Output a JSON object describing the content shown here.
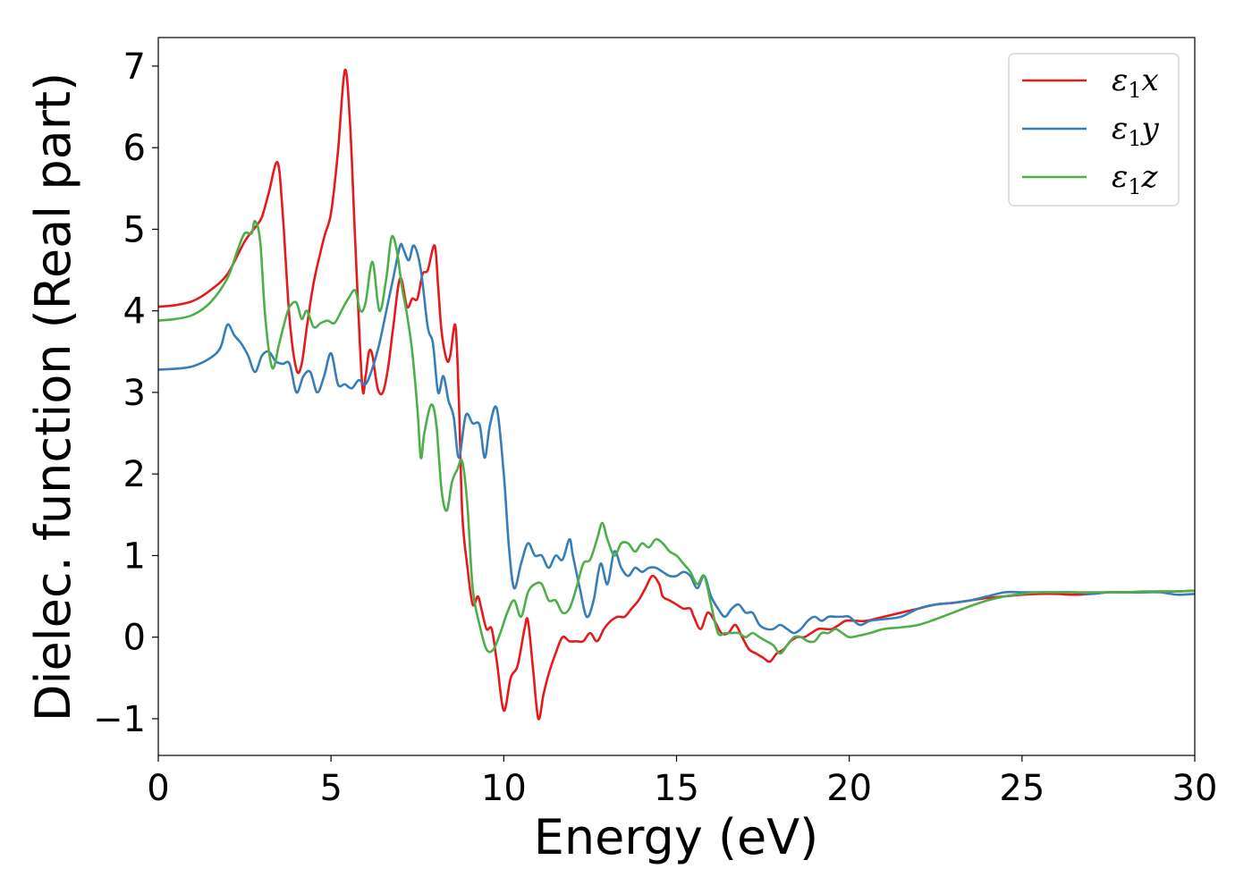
{
  "chart_data": {
    "type": "line",
    "title": "",
    "xlabel": "Energy (eV)",
    "ylabel": "Dielec. function (Real part)",
    "xlim": [
      0,
      30
    ],
    "ylim": [
      -1.45,
      7.35
    ],
    "xticks": [
      0,
      5,
      10,
      15,
      20,
      25,
      30
    ],
    "xtick_labels": [
      "0",
      "5",
      "10",
      "15",
      "20",
      "25",
      "30"
    ],
    "yticks": [
      -1,
      0,
      1,
      2,
      3,
      4,
      5,
      6,
      7
    ],
    "ytick_labels": [
      "−1",
      "0",
      "1",
      "2",
      "3",
      "4",
      "5",
      "6",
      "7"
    ],
    "grid": false,
    "legend_position": "top-right",
    "series": [
      {
        "name": "ε₁x",
        "legend_symbol": "ε",
        "legend_subscript": "1",
        "legend_suffix": "x",
        "color": "#e41a1c",
        "x": [
          0,
          0.5,
          1,
          1.5,
          2,
          2.5,
          2.8,
          3.0,
          3.2,
          3.45,
          3.6,
          3.8,
          4.0,
          4.15,
          4.3,
          4.5,
          4.8,
          5.0,
          5.2,
          5.4,
          5.55,
          5.7,
          5.9,
          6.0,
          6.1,
          6.2,
          6.35,
          6.5,
          6.65,
          6.8,
          7.0,
          7.2,
          7.35,
          7.5,
          7.65,
          7.8,
          8.0,
          8.1,
          8.2,
          8.35,
          8.45,
          8.6,
          8.7,
          8.8,
          8.95,
          9.1,
          9.25,
          9.35,
          9.5,
          9.65,
          9.8,
          10.0,
          10.2,
          10.4,
          10.6,
          10.7,
          10.85,
          11.0,
          11.15,
          11.3,
          11.5,
          11.7,
          11.9,
          12.1,
          12.3,
          12.5,
          12.7,
          12.9,
          13.1,
          13.3,
          13.5,
          13.7,
          13.9,
          14.1,
          14.3,
          14.5,
          14.6,
          14.8,
          15.0,
          15.2,
          15.4,
          15.5,
          15.7,
          15.9,
          16.1,
          16.3,
          16.5,
          16.7,
          16.9,
          17.1,
          17.3,
          17.5,
          17.7,
          17.9,
          18.1,
          18.3,
          18.5,
          18.7,
          18.9,
          19.1,
          19.3,
          19.5,
          19.7,
          19.9,
          20.2,
          20.5,
          21,
          21.5,
          22,
          22.5,
          23,
          23.5,
          24,
          24.5,
          25,
          25.5,
          26,
          26.5,
          27,
          27.5,
          28,
          28.5,
          29,
          29.5,
          30
        ],
        "y": [
          4.05,
          4.07,
          4.12,
          4.25,
          4.45,
          4.85,
          5.02,
          5.15,
          5.45,
          5.82,
          5.2,
          3.9,
          3.28,
          3.35,
          3.8,
          4.35,
          4.9,
          5.2,
          5.95,
          6.95,
          6.3,
          4.85,
          3.1,
          3.2,
          3.5,
          3.45,
          3.05,
          3.0,
          3.3,
          3.8,
          4.4,
          4.05,
          4.15,
          4.15,
          4.45,
          4.5,
          4.8,
          4.3,
          3.75,
          3.4,
          3.45,
          3.82,
          2.9,
          1.5,
          0.85,
          0.4,
          0.5,
          0.35,
          0.1,
          0.1,
          -0.3,
          -0.9,
          -0.5,
          -0.35,
          0.1,
          0.2,
          -0.4,
          -1.0,
          -0.7,
          -0.45,
          -0.2,
          0.0,
          -0.05,
          -0.05,
          -0.05,
          0.05,
          -0.05,
          0.1,
          0.2,
          0.25,
          0.25,
          0.35,
          0.45,
          0.6,
          0.75,
          0.65,
          0.5,
          0.45,
          0.4,
          0.35,
          0.35,
          0.25,
          0.1,
          0.3,
          0.2,
          0.05,
          0.05,
          0.15,
          0.0,
          -0.15,
          -0.2,
          -0.25,
          -0.3,
          -0.2,
          -0.15,
          -0.05,
          0.0,
          0.0,
          0.05,
          0.1,
          0.1,
          0.1,
          0.15,
          0.2,
          0.2,
          0.2,
          0.25,
          0.3,
          0.35,
          0.4,
          0.42,
          0.45,
          0.48,
          0.5,
          0.52,
          0.53,
          0.53,
          0.52,
          0.53,
          0.55,
          0.55,
          0.55,
          0.56,
          0.56,
          0.57
        ]
      },
      {
        "name": "ε₁y",
        "legend_symbol": "ε",
        "legend_subscript": "1",
        "legend_suffix": "y",
        "color": "#377eb8",
        "x": [
          0,
          0.5,
          1,
          1.5,
          1.8,
          2.0,
          2.2,
          2.4,
          2.6,
          2.8,
          3.0,
          3.2,
          3.4,
          3.6,
          3.8,
          4.0,
          4.2,
          4.4,
          4.6,
          4.8,
          5.0,
          5.2,
          5.4,
          5.6,
          5.8,
          6.0,
          6.2,
          6.4,
          6.6,
          6.8,
          7.0,
          7.1,
          7.25,
          7.4,
          7.6,
          7.8,
          7.95,
          8.1,
          8.25,
          8.4,
          8.55,
          8.7,
          8.9,
          9.1,
          9.3,
          9.45,
          9.6,
          9.8,
          10.0,
          10.15,
          10.3,
          10.5,
          10.7,
          10.9,
          11.1,
          11.3,
          11.5,
          11.7,
          11.9,
          12.0,
          12.2,
          12.4,
          12.6,
          12.8,
          13.0,
          13.2,
          13.4,
          13.6,
          13.8,
          14.0,
          14.2,
          14.4,
          14.6,
          14.8,
          15.0,
          15.2,
          15.4,
          15.6,
          15.8,
          16.0,
          16.2,
          16.4,
          16.6,
          16.8,
          17.0,
          17.2,
          17.4,
          17.6,
          17.8,
          18.0,
          18.2,
          18.4,
          18.6,
          18.8,
          19.0,
          19.2,
          19.4,
          19.6,
          19.8,
          20.0,
          20.3,
          20.6,
          21,
          21.5,
          22,
          22.5,
          23,
          23.5,
          24,
          24.5,
          25,
          25.5,
          26,
          26.5,
          27,
          27.5,
          28,
          28.5,
          29,
          29.5,
          30
        ],
        "y": [
          3.28,
          3.29,
          3.32,
          3.42,
          3.55,
          3.83,
          3.7,
          3.6,
          3.45,
          3.25,
          3.45,
          3.5,
          3.38,
          3.35,
          3.35,
          3.0,
          3.2,
          3.25,
          3.0,
          3.2,
          3.48,
          3.1,
          3.1,
          3.05,
          3.15,
          3.1,
          3.3,
          3.6,
          4.0,
          4.4,
          4.8,
          4.75,
          4.62,
          4.8,
          4.5,
          3.8,
          3.6,
          3.0,
          3.2,
          2.9,
          2.7,
          2.2,
          2.72,
          2.62,
          2.6,
          2.2,
          2.6,
          2.8,
          2.0,
          1.1,
          0.6,
          0.9,
          1.15,
          1.0,
          1.0,
          0.85,
          1.0,
          0.95,
          1.2,
          1.0,
          0.6,
          0.25,
          0.45,
          0.9,
          0.65,
          1.05,
          0.85,
          0.75,
          0.85,
          0.8,
          0.85,
          0.85,
          0.8,
          0.75,
          0.75,
          0.8,
          0.75,
          0.6,
          0.75,
          0.5,
          0.35,
          0.25,
          0.35,
          0.4,
          0.3,
          0.3,
          0.15,
          0.1,
          0.1,
          0.15,
          0.1,
          0.05,
          0.1,
          0.2,
          0.25,
          0.2,
          0.25,
          0.25,
          0.25,
          0.25,
          0.15,
          0.2,
          0.22,
          0.25,
          0.35,
          0.4,
          0.42,
          0.45,
          0.5,
          0.55,
          0.55,
          0.55,
          0.55,
          0.55,
          0.53,
          0.55,
          0.55,
          0.55,
          0.55,
          0.52,
          0.53
        ]
      },
      {
        "name": "ε₁z",
        "legend_symbol": "ε",
        "legend_subscript": "1",
        "legend_suffix": "z",
        "color": "#4daf4a",
        "x": [
          0,
          0.5,
          1,
          1.5,
          2.0,
          2.3,
          2.5,
          2.7,
          2.8,
          2.95,
          3.1,
          3.3,
          3.5,
          3.65,
          3.8,
          4.0,
          4.15,
          4.3,
          4.5,
          4.7,
          4.9,
          5.1,
          5.3,
          5.5,
          5.7,
          5.85,
          6.0,
          6.2,
          6.4,
          6.6,
          6.75,
          6.9,
          7.05,
          7.2,
          7.35,
          7.5,
          7.6,
          7.7,
          7.9,
          8.05,
          8.2,
          8.35,
          8.5,
          8.65,
          8.8,
          8.95,
          9.1,
          9.3,
          9.5,
          9.7,
          9.9,
          10.1,
          10.3,
          10.5,
          10.7,
          10.9,
          11.1,
          11.3,
          11.5,
          11.7,
          11.9,
          12.1,
          12.3,
          12.5,
          12.7,
          12.85,
          13.0,
          13.2,
          13.4,
          13.6,
          13.8,
          14.0,
          14.2,
          14.4,
          14.6,
          14.8,
          15.0,
          15.2,
          15.4,
          15.6,
          15.8,
          16.0,
          16.2,
          16.4,
          16.6,
          16.8,
          17.0,
          17.2,
          17.4,
          17.6,
          17.8,
          18.0,
          18.2,
          18.4,
          18.6,
          18.8,
          19.0,
          19.2,
          19.4,
          19.6,
          19.8,
          20.0,
          20.3,
          20.6,
          21,
          21.5,
          22,
          22.5,
          23,
          23.5,
          24,
          24.5,
          25,
          25.5,
          26,
          26.5,
          27,
          27.5,
          28,
          28.5,
          29,
          29.5,
          30
        ],
        "y": [
          3.88,
          3.9,
          3.95,
          4.1,
          4.4,
          4.75,
          4.95,
          4.95,
          5.1,
          4.85,
          3.9,
          3.3,
          3.6,
          3.85,
          4.05,
          4.1,
          3.9,
          4.0,
          3.8,
          3.85,
          3.88,
          3.85,
          4.0,
          4.15,
          4.25,
          4.0,
          4.1,
          4.6,
          4.0,
          4.4,
          4.9,
          4.75,
          4.3,
          3.95,
          3.5,
          2.8,
          2.2,
          2.5,
          2.85,
          2.6,
          1.8,
          1.55,
          1.9,
          2.05,
          2.15,
          1.6,
          0.6,
          0.15,
          -0.15,
          -0.15,
          0.05,
          0.3,
          0.45,
          0.25,
          0.55,
          0.65,
          0.65,
          0.45,
          0.45,
          0.3,
          0.35,
          0.6,
          0.9,
          0.95,
          1.2,
          1.4,
          1.2,
          1.0,
          1.15,
          1.15,
          1.05,
          1.15,
          1.1,
          1.2,
          1.15,
          1.05,
          1.0,
          0.9,
          0.8,
          0.65,
          0.75,
          0.4,
          0.05,
          0.05,
          0.05,
          0.05,
          0.0,
          0.05,
          0.0,
          -0.05,
          -0.1,
          -0.2,
          -0.1,
          0.0,
          0.0,
          -0.05,
          -0.05,
          0.05,
          0.05,
          0.1,
          0.05,
          0.0,
          0.02,
          0.05,
          0.1,
          0.12,
          0.15,
          0.22,
          0.3,
          0.38,
          0.45,
          0.5,
          0.53,
          0.55,
          0.55,
          0.55,
          0.55,
          0.55,
          0.55,
          0.56,
          0.56,
          0.56,
          0.57
        ]
      }
    ]
  }
}
